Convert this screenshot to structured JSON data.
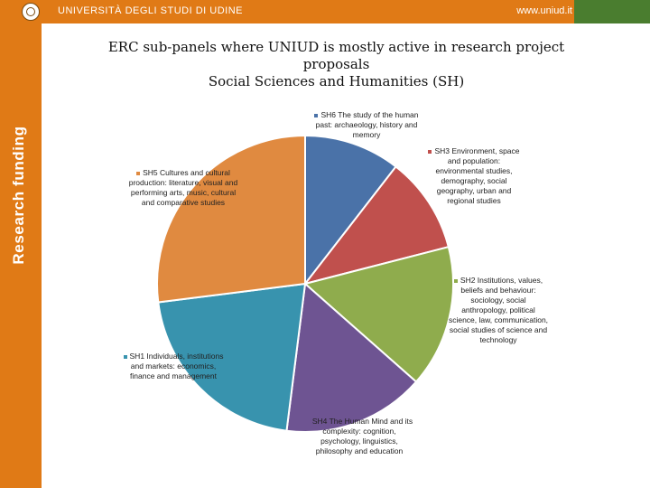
{
  "header": {
    "university": "UNIVERSITÀ DEGLI STUDI DI UDINE",
    "website": "www.uniud.it",
    "logo_icon": "university-crest-icon"
  },
  "sidebar": {
    "label": "Research funding"
  },
  "colors": {
    "accent": "#e07a16",
    "corner": "#4a7d2f"
  },
  "chart_data": {
    "type": "pie",
    "title_lines": [
      "ERC sub-panels where UNIUD is mostly active in research project",
      "proposals",
      "Social Sciences and Humanities (SH)"
    ],
    "start": "12 o'clock",
    "direction": "clockwise",
    "legend": "labels beside slices",
    "slices": [
      {
        "label": "SH6 The study of the human past: archaeology, history and memory",
        "value": 10.5,
        "color": "#4a72a8"
      },
      {
        "label": "SH3 Environment, space and population: environmental studies, demography, social geography, urban and regional studies",
        "value": 10.5,
        "color": "#c0504d"
      },
      {
        "label": "SH2 Institutions, values, beliefs and behaviour: sociology, social anthropology, political science, law, communication, social studies of science and technology",
        "value": 15.5,
        "color": "#8fac4d"
      },
      {
        "label": "SH4 The Human Mind and its complexity: cognition, psychology, linguistics, philosophy and education",
        "value": 15.5,
        "color": "#6e5492"
      },
      {
        "label": "SH1 Individuals, institutions and markets: economics, finance and management",
        "value": 21,
        "color": "#3893ae"
      },
      {
        "label": "SH5 Cultures and cultural production: literature, visual and performing arts, music, cultural and comparative studies",
        "value": 27,
        "color": "#e08a40"
      }
    ]
  }
}
